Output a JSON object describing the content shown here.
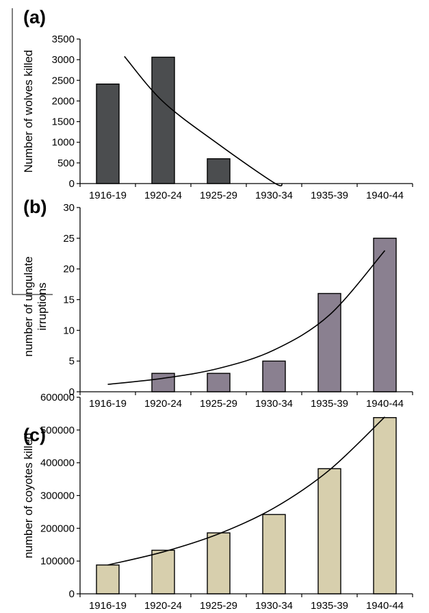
{
  "chart_data": [
    {
      "type": "bar",
      "panel_label": "(a)",
      "categories": [
        "1916-19",
        "1920-24",
        "1925-29",
        "1930-34",
        "1935-39",
        "1940-44"
      ],
      "values": [
        2410,
        3060,
        600,
        0,
        0,
        0
      ],
      "ylabel": "Number of wolves killed",
      "xlabel": "",
      "ylim": [
        0,
        3500
      ],
      "yticks": [
        0,
        500,
        1000,
        1500,
        2000,
        2500,
        3000,
        3500
      ],
      "ytick_labels": [
        "0",
        "500",
        "1000",
        "1500",
        "2000",
        "2500",
        "3000",
        "3500"
      ],
      "bar_color": "#4b4d4f",
      "trendline": {
        "type": "exponential-decay",
        "points": [
          [
            0.3,
            3080
          ],
          [
            1,
            1980
          ],
          [
            2,
            950
          ],
          [
            3,
            20
          ],
          [
            3.15,
            0
          ]
        ]
      },
      "grid": false
    },
    {
      "type": "bar",
      "panel_label": "(b)",
      "categories": [
        "1916-19",
        "1920-24",
        "1925-29",
        "1930-34",
        "1935-39",
        "1940-44"
      ],
      "values": [
        0,
        3,
        3,
        5,
        16,
        25
      ],
      "ylabel": "number of ungulate irruptions",
      "xlabel": "",
      "ylim": [
        0,
        30
      ],
      "yticks": [
        0,
        5,
        10,
        15,
        20,
        25,
        30
      ],
      "ytick_labels": [
        "0",
        "5",
        "10",
        "15",
        "20",
        "25",
        "30"
      ],
      "bar_color": "#8a8090",
      "trendline": {
        "type": "exponential",
        "points": [
          [
            0,
            1.2
          ],
          [
            1,
            2.2
          ],
          [
            2,
            3.8
          ],
          [
            3,
            6.8
          ],
          [
            4,
            12.5
          ],
          [
            5,
            23
          ]
        ]
      },
      "grid": false
    },
    {
      "type": "bar",
      "panel_label": "(c)",
      "categories": [
        "1916-19",
        "1920-24",
        "1925-29",
        "1930-34",
        "1935-39",
        "1940-44"
      ],
      "values": [
        88000,
        133000,
        186000,
        242000,
        382000,
        538000
      ],
      "ylabel": "number of coyotes killed",
      "xlabel": "",
      "ylim": [
        0,
        600000
      ],
      "yticks": [
        0,
        100000,
        200000,
        300000,
        400000,
        500000,
        600000
      ],
      "ytick_labels": [
        "0",
        "100000",
        "200000",
        "300000",
        "400000",
        "500000",
        "600000"
      ],
      "bar_color": "#d7cfad",
      "trendline": {
        "type": "exponential",
        "points": [
          [
            0,
            88000
          ],
          [
            1,
            128000
          ],
          [
            2,
            183000
          ],
          [
            3,
            262000
          ],
          [
            4,
            378000
          ],
          [
            5,
            540000
          ]
        ]
      },
      "grid": false
    }
  ]
}
